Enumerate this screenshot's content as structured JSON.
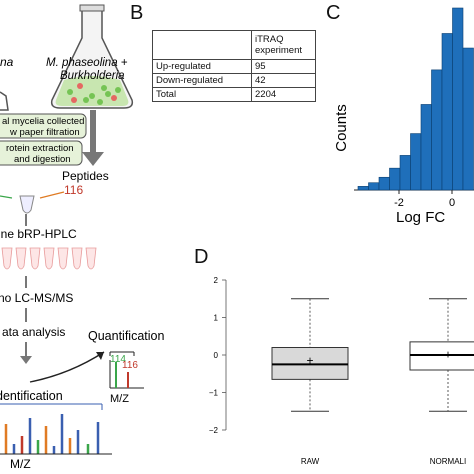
{
  "panels": {
    "B": "B",
    "C": "C",
    "D": "D"
  },
  "workflow": {
    "flask_left_text": "na",
    "flask_right_text_1": "M. phaseolina +",
    "flask_right_text_2": "Burkholderia",
    "box1_line1": "al mycelia collected",
    "box1_line2": "w paper filtration",
    "box2_line1": "rotein extraction",
    "box2_line2": "and digestion",
    "peptides_label": "Peptides",
    "peptides_number": "116",
    "hplc_label": "ine bRP-HPLC",
    "lcms_label": "no LC-MS/MS",
    "analysis_label": "ata analysis",
    "identification_label": "dentification",
    "quantification_label": "Quantification",
    "quant_peak_1": "114",
    "quant_peak_2": "116",
    "mz_small": "M/Z",
    "mz_large": "M/Z"
  },
  "itraq_table": {
    "header": "iTRAQ experiment",
    "rows": [
      {
        "label": "Up-regulated",
        "value": "95"
      },
      {
        "label": "Down-regulated",
        "value": "42"
      },
      {
        "label": "Total",
        "value": "2204"
      }
    ]
  },
  "chart_data": [
    {
      "type": "bar",
      "panel": "C",
      "ylabel": "Counts",
      "xlabel": "Log FC",
      "x_ticks": [
        "-2",
        "0"
      ],
      "bar_color": "#1f6fba",
      "values": [
        0.02,
        0.04,
        0.07,
        0.12,
        0.19,
        0.31,
        0.47,
        0.66,
        0.86,
        1.0,
        0.78
      ]
    },
    {
      "type": "box",
      "panel": "D",
      "categories": [
        "RAW",
        "NORMALI"
      ],
      "y_ticks": [
        "2",
        "1",
        "0",
        "−1",
        "−2"
      ],
      "ylim": [
        -2,
        2
      ],
      "series": [
        {
          "category": "RAW",
          "whisker_low": -1.5,
          "q1": -0.65,
          "median": -0.25,
          "q3": 0.2,
          "whisker_high": 1.5,
          "mean": -0.15,
          "fill": "#d9d9d9"
        },
        {
          "category": "NORMALI",
          "whisker_low": -1.5,
          "q1": -0.4,
          "median": 0.0,
          "q3": 0.35,
          "whisker_high": 1.5,
          "mean": 0.02,
          "fill": "#ffffff"
        }
      ]
    }
  ]
}
